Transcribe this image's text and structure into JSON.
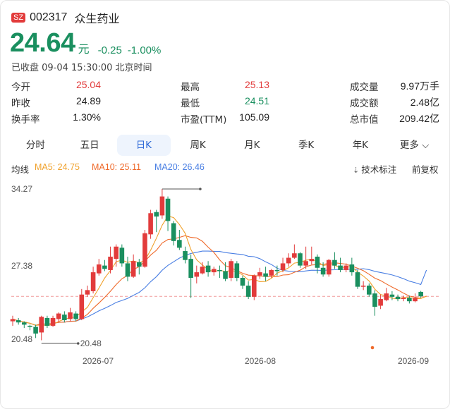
{
  "header": {
    "market": "SZ",
    "code": "002317",
    "name": "众生药业"
  },
  "price": {
    "value": "24.64",
    "unit": "元",
    "change": "-0.25",
    "change_pct": "-1.00%"
  },
  "status": "已收盘 09-04 15:30:00 北京时间",
  "quote": [
    [
      {
        "label": "今开",
        "value": "25.04",
        "color": "red"
      },
      {
        "label": "最高",
        "value": "25.13",
        "color": "red"
      },
      {
        "label": "成交量",
        "value": "9.97万手",
        "color": "dark"
      }
    ],
    [
      {
        "label": "昨收",
        "value": "24.89",
        "color": "dark"
      },
      {
        "label": "最低",
        "value": "24.51",
        "color": "green"
      },
      {
        "label": "成交额",
        "value": "2.48亿",
        "color": "dark"
      }
    ],
    [
      {
        "label": "换手率",
        "value": "1.30%",
        "color": "dark"
      },
      {
        "label": "市盈(TTM)",
        "value": "105.09",
        "color": "dark"
      },
      {
        "label": "总市值",
        "value": "209.42亿",
        "color": "dark"
      }
    ]
  ],
  "tabs": [
    "分时",
    "五日",
    "日K",
    "周K",
    "月K",
    "季K",
    "年K",
    "更多"
  ],
  "active_tab": "日K",
  "ma": {
    "label": "均线",
    "ma5": "MA5: 24.75",
    "ma10": "MA10: 25.11",
    "ma20": "MA20: 26.46",
    "tools": "技术标注",
    "adjust": "前复权"
  },
  "colors": {
    "up": "#e23b3b",
    "down": "#1a8f5f",
    "ma5": "#f0a12b",
    "ma10": "#ef6a2b",
    "ma20": "#4a7fe3",
    "accent": "#2f6ad8"
  },
  "chart_data": {
    "type": "candlestick",
    "y_tick_labels": [
      "34.27",
      "27.38",
      "20.48"
    ],
    "ylim": [
      20.48,
      34.27
    ],
    "x_tick_labels": [
      "2026-07",
      "2026-08",
      "2026-09"
    ],
    "annotations": {
      "high": "34.27",
      "low": "20.48"
    },
    "candles": [
      [
        22.4,
        22.6,
        22.0,
        22.9
      ],
      [
        22.5,
        22.3,
        22.1,
        22.7
      ],
      [
        22.3,
        22.1,
        21.8,
        22.4
      ],
      [
        22.0,
        21.9,
        21.6,
        22.1
      ],
      [
        21.9,
        21.3,
        20.9,
        22.1
      ],
      [
        21.4,
        22.8,
        20.7,
        22.9
      ],
      [
        22.7,
        22.0,
        21.8,
        22.9
      ],
      [
        22.0,
        22.7,
        21.9,
        22.9
      ],
      [
        22.6,
        23.1,
        22.3,
        23.2
      ],
      [
        23.0,
        22.5,
        22.3,
        23.3
      ],
      [
        22.6,
        23.2,
        22.4,
        23.6
      ],
      [
        23.1,
        22.6,
        22.4,
        23.3
      ],
      [
        22.6,
        24.8,
        22.5,
        25.3
      ],
      [
        24.8,
        25.2,
        24.6,
        25.6
      ],
      [
        25.1,
        26.8,
        24.9,
        27.3
      ],
      [
        26.7,
        27.5,
        26.5,
        28.0
      ],
      [
        27.4,
        27.1,
        26.9,
        27.9
      ],
      [
        27.0,
        28.2,
        26.7,
        29.1
      ],
      [
        28.0,
        29.1,
        27.3,
        29.3
      ],
      [
        29.0,
        27.6,
        27.3,
        29.3
      ],
      [
        27.6,
        26.4,
        26.0,
        28.2
      ],
      [
        26.4,
        27.8,
        26.3,
        28.4
      ],
      [
        27.7,
        27.3,
        26.6,
        28.0
      ],
      [
        27.3,
        30.3,
        27.2,
        30.6
      ],
      [
        30.2,
        32.1,
        29.8,
        32.4
      ],
      [
        32.2,
        31.8,
        30.4,
        32.4
      ],
      [
        31.9,
        33.6,
        31.6,
        34.27
      ],
      [
        33.4,
        31.4,
        30.5,
        33.6
      ],
      [
        31.2,
        29.6,
        29.2,
        31.4
      ],
      [
        29.7,
        29.0,
        28.8,
        30.6
      ],
      [
        28.7,
        27.9,
        27.6,
        29.1
      ],
      [
        28.0,
        26.3,
        24.5,
        28.4
      ],
      [
        26.4,
        26.8,
        25.8,
        27.4
      ],
      [
        26.7,
        27.3,
        26.6,
        27.7
      ],
      [
        27.4,
        26.8,
        26.4,
        27.8
      ],
      [
        26.8,
        27.1,
        26.5,
        27.3
      ],
      [
        27.0,
        26.9,
        26.3,
        27.4
      ],
      [
        26.9,
        26.2,
        26.0,
        27.7
      ],
      [
        26.3,
        27.8,
        26.0,
        28.0
      ],
      [
        27.6,
        26.3,
        26.0,
        27.8
      ],
      [
        26.3,
        25.6,
        25.3,
        26.5
      ],
      [
        25.6,
        24.6,
        24.4,
        26.0
      ],
      [
        24.6,
        26.5,
        24.3,
        26.6
      ],
      [
        26.5,
        26.8,
        26.2,
        27.2
      ],
      [
        26.7,
        26.4,
        26.0,
        27.3
      ],
      [
        26.5,
        27.0,
        26.3,
        27.1
      ],
      [
        27.0,
        26.9,
        26.5,
        27.4
      ],
      [
        27.0,
        27.6,
        26.8,
        28.1
      ],
      [
        27.6,
        28.1,
        27.3,
        28.5
      ],
      [
        28.1,
        28.5,
        28.0,
        29.3
      ],
      [
        28.5,
        27.4,
        27.2,
        28.6
      ],
      [
        27.4,
        27.8,
        27.1,
        29.1
      ],
      [
        27.8,
        28.0,
        27.5,
        29.1
      ],
      [
        28.2,
        27.2,
        26.7,
        28.4
      ],
      [
        27.2,
        26.6,
        26.4,
        27.7
      ],
      [
        26.6,
        27.9,
        26.4,
        28.0
      ],
      [
        27.9,
        27.4,
        27.1,
        28.6
      ],
      [
        27.4,
        27.0,
        26.8,
        28.1
      ],
      [
        27.0,
        27.4,
        26.8,
        27.6
      ],
      [
        27.5,
        26.8,
        26.5,
        28.1
      ],
      [
        26.8,
        25.5,
        25.3,
        27.0
      ],
      [
        25.5,
        25.6,
        25.2,
        26.0
      ],
      [
        25.6,
        24.8,
        24.6,
        25.8
      ],
      [
        24.9,
        23.7,
        22.9,
        25.2
      ],
      [
        23.8,
        24.4,
        23.5,
        24.8
      ],
      [
        24.3,
        24.9,
        24.2,
        25.4
      ],
      [
        24.8,
        24.6,
        24.3,
        25.1
      ],
      [
        24.6,
        24.4,
        24.2,
        24.8
      ],
      [
        24.4,
        24.5,
        24.2,
        24.7
      ],
      [
        24.5,
        24.2,
        24.0,
        24.7
      ],
      [
        24.2,
        24.5,
        24.1,
        24.9
      ],
      [
        25.04,
        24.64,
        24.51,
        25.13
      ]
    ]
  }
}
